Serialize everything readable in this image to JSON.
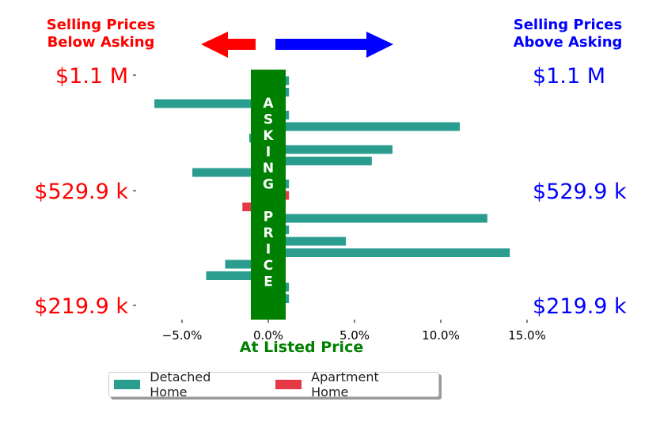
{
  "header": {
    "left_title": "Selling Prices\nBelow Asking",
    "right_title": "Selling Prices\nAbove Asking"
  },
  "chart_data": {
    "type": "bar",
    "orientation": "horizontal",
    "xlabel": "At Listed Price",
    "xlim": [
      -0.075,
      0.15
    ],
    "xticks": [
      -0.05,
      0.0,
      0.05,
      0.1,
      0.15
    ],
    "xtick_labels": [
      "−5.0%",
      "0.0%",
      "5.0%",
      "10.0%",
      "15.0%"
    ],
    "left_price_labels": [
      "$1.1 M",
      "$529.9 k",
      "$219.9 k"
    ],
    "right_price_labels": [
      "$1.1 M",
      "$529.9 k",
      "$219.9 k"
    ],
    "center_band_label": [
      "A",
      "S",
      "K",
      "I",
      "N",
      "G",
      "",
      "P",
      "R",
      "I",
      "C",
      "E"
    ],
    "center_band_color": "#008000",
    "series": [
      {
        "name": "Detached Home",
        "color": "#2a9d8f",
        "values": [
          0.012,
          0.012,
          -0.066,
          0.012,
          0.111,
          -0.011,
          0.072,
          0.06,
          -0.044,
          0.012,
          null,
          null,
          0.127,
          0.012,
          0.045,
          0.14,
          -0.025,
          -0.036,
          0.012,
          0.012
        ]
      },
      {
        "name": "Apartment Home",
        "color": "#e63946",
        "values": [
          null,
          null,
          null,
          null,
          null,
          null,
          null,
          null,
          null,
          null,
          0.012,
          -0.015,
          null,
          null,
          null,
          null,
          null,
          null,
          null,
          null
        ]
      }
    ],
    "legend": "bottom-center",
    "grid": false
  }
}
